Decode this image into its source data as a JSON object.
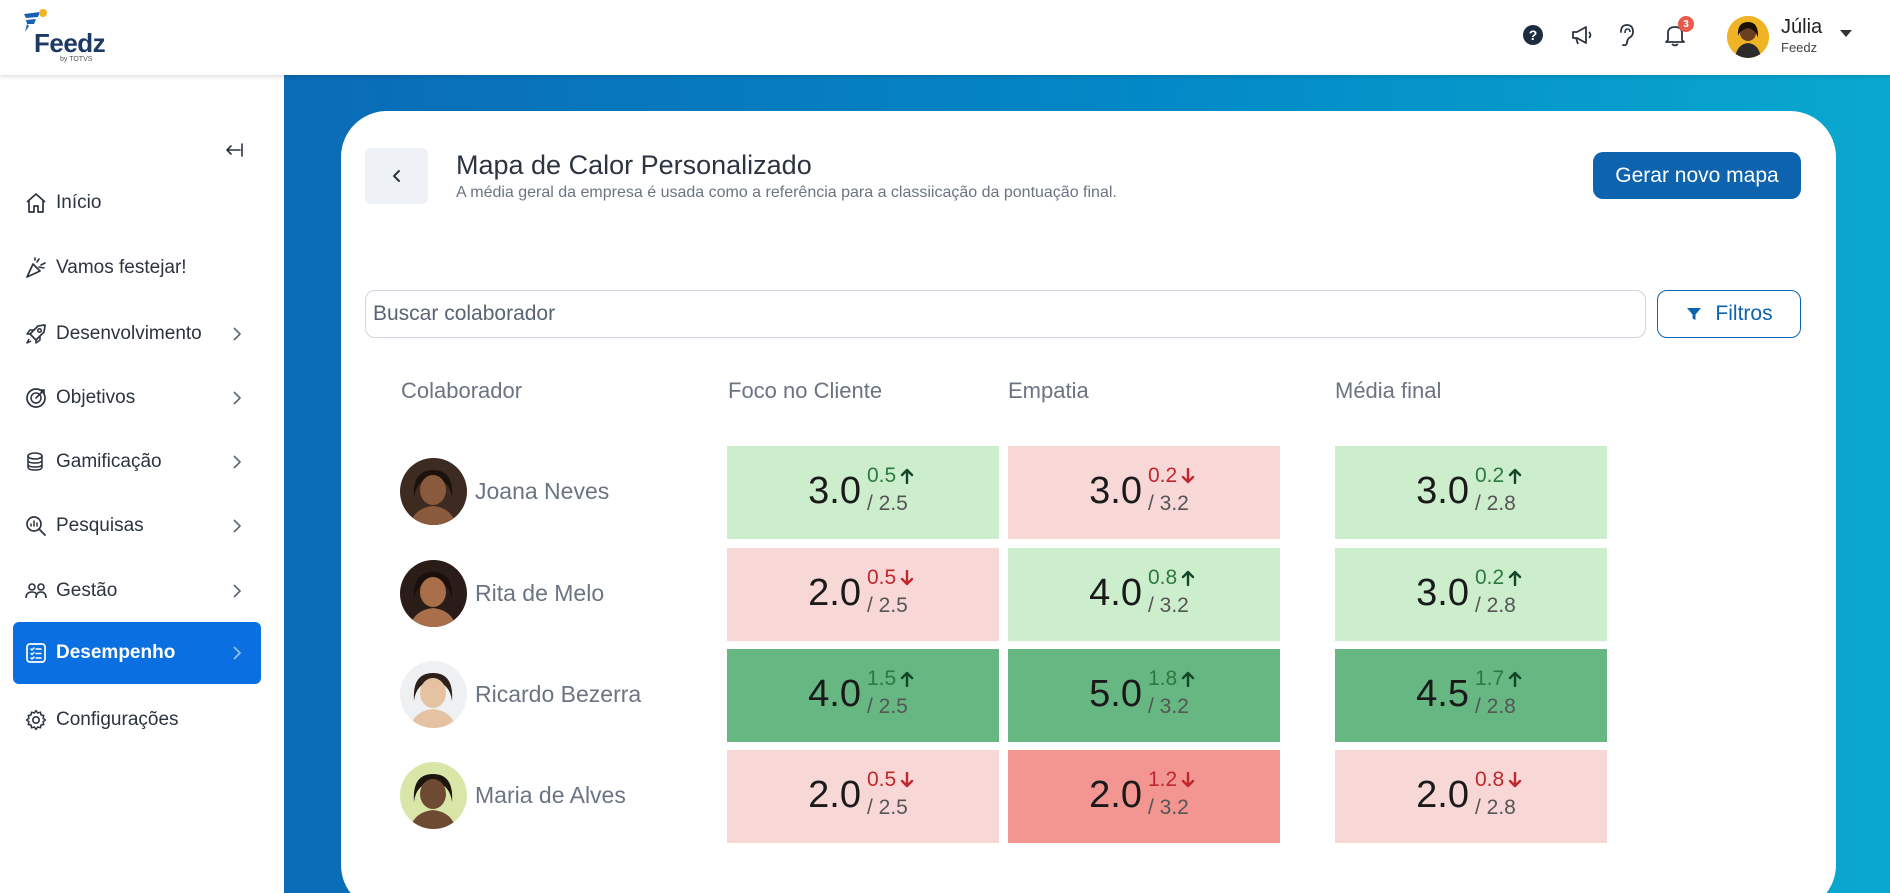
{
  "brand": {
    "name": "Feedz",
    "sub": "by TOTVS"
  },
  "header": {
    "notifications_count": "3",
    "user": {
      "name": "Júlia",
      "org": "Feedz"
    }
  },
  "sidebar": {
    "items": [
      {
        "label": "Início",
        "icon": "home-icon"
      },
      {
        "label": "Vamos festejar!",
        "icon": "party-icon"
      },
      {
        "label": "Desenvolvimento",
        "icon": "rocket-icon"
      },
      {
        "label": "Objetivos",
        "icon": "target-icon"
      },
      {
        "label": "Gamificação",
        "icon": "coins-icon"
      },
      {
        "label": "Pesquisas",
        "icon": "survey-icon"
      },
      {
        "label": "Gestão",
        "icon": "people-icon"
      },
      {
        "label": "Desempenho",
        "icon": "checklist-icon"
      },
      {
        "label": "Configurações",
        "icon": "gear-icon"
      }
    ]
  },
  "page": {
    "title": "Mapa de Calor Personalizado",
    "subtitle": "A média geral da empresa é usada como a referência para a classiicação da pontuação final.",
    "generate_label": "Gerar novo mapa",
    "search_placeholder": "Buscar colaborador",
    "filters_label": "Filtros"
  },
  "table": {
    "headers": [
      "Colaborador",
      "Foco no Cliente",
      "Empatia",
      "Média final"
    ],
    "rows": [
      {
        "name": "Joana Neves",
        "cells": [
          {
            "score": "3.0",
            "delta": "0.5",
            "dir": "up",
            "ref": "/ 2.5",
            "tone": "light-green"
          },
          {
            "score": "3.0",
            "delta": "0.2",
            "dir": "down",
            "ref": "/ 3.2",
            "tone": "light-red"
          },
          {
            "score": "3.0",
            "delta": "0.2",
            "dir": "up",
            "ref": "/ 2.8",
            "tone": "light-green"
          }
        ]
      },
      {
        "name": "Rita de Melo",
        "cells": [
          {
            "score": "2.0",
            "delta": "0.5",
            "dir": "down",
            "ref": "/ 2.5",
            "tone": "light-red"
          },
          {
            "score": "4.0",
            "delta": "0.8",
            "dir": "up",
            "ref": "/ 3.2",
            "tone": "light-green"
          },
          {
            "score": "3.0",
            "delta": "0.2",
            "dir": "up",
            "ref": "/ 2.8",
            "tone": "light-green"
          }
        ]
      },
      {
        "name": "Ricardo Bezerra",
        "cells": [
          {
            "score": "4.0",
            "delta": "1.5",
            "dir": "up",
            "ref": "/ 2.5",
            "tone": "dark-green"
          },
          {
            "score": "5.0",
            "delta": "1.8",
            "dir": "up",
            "ref": "/ 3.2",
            "tone": "dark-green"
          },
          {
            "score": "4.5",
            "delta": "1.7",
            "dir": "up",
            "ref": "/ 2.8",
            "tone": "dark-green"
          }
        ]
      },
      {
        "name": "Maria de Alves",
        "cells": [
          {
            "score": "2.0",
            "delta": "0.5",
            "dir": "down",
            "ref": "/ 2.5",
            "tone": "light-red"
          },
          {
            "score": "2.0",
            "delta": "1.2",
            "dir": "down",
            "ref": "/ 3.2",
            "tone": "strong-red"
          },
          {
            "score": "2.0",
            "delta": "0.8",
            "dir": "down",
            "ref": "/ 2.8",
            "tone": "light-red"
          }
        ]
      }
    ]
  },
  "colors": {
    "primary": "#0d63ad",
    "active_nav": "#0a6fe0",
    "up": "#2d7a3e",
    "down": "#c0272d"
  }
}
